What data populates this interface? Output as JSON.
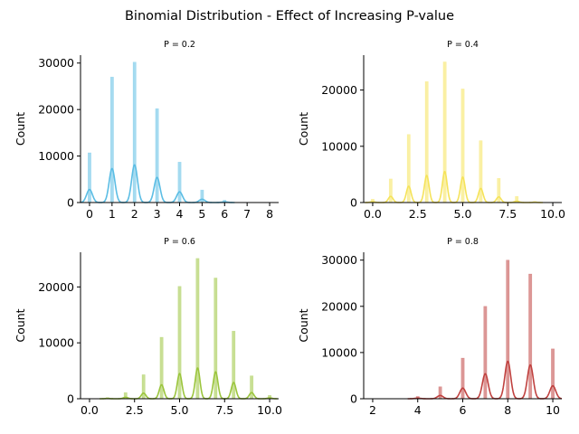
{
  "figure": {
    "title": "Binomial Distribution - Effect of Increasing P-value"
  },
  "chart_data": [
    {
      "type": "bar",
      "title": "P = 0.2",
      "xlabel": "",
      "ylabel": "Count",
      "color": "#5bbde4",
      "xlim": [
        -0.4,
        8.4
      ],
      "ylim": [
        0,
        31700
      ],
      "xticks": [
        0,
        1,
        2,
        3,
        4,
        5,
        6,
        7,
        8
      ],
      "xtick_labels": [
        "0",
        "1",
        "2",
        "3",
        "4",
        "5",
        "6",
        "7",
        "8"
      ],
      "yticks": [
        0,
        10000,
        20000,
        30000
      ],
      "ytick_labels": [
        "0",
        "10000",
        "20000",
        "30000"
      ],
      "categories": [
        0,
        1,
        2,
        3,
        4,
        5,
        6
      ],
      "values": [
        10700,
        27000,
        30200,
        20200,
        8700,
        2700,
        500
      ],
      "kde_peaks": [
        2800,
        7300,
        8100,
        5400,
        2300,
        700,
        130
      ]
    },
    {
      "type": "bar",
      "title": "P = 0.4",
      "xlabel": "",
      "ylabel": "Count",
      "color": "#f5e35a",
      "xlim": [
        -0.5,
        10.5
      ],
      "ylim": [
        0,
        26200
      ],
      "xticks": [
        0,
        2.5,
        5,
        7.5,
        10
      ],
      "xtick_labels": [
        "0.0",
        "2.5",
        "5.0",
        "7.5",
        "10.0"
      ],
      "yticks": [
        0,
        10000,
        20000
      ],
      "ytick_labels": [
        "0",
        "10000",
        "20000"
      ],
      "categories": [
        0,
        1,
        2,
        3,
        4,
        5,
        6,
        7,
        8,
        9
      ],
      "values": [
        600,
        4200,
        12100,
        21500,
        25000,
        20200,
        11000,
        4300,
        1100,
        200
      ],
      "kde_peaks": [
        150,
        1100,
        2900,
        4800,
        5500,
        4500,
        2500,
        1000,
        250,
        50
      ]
    },
    {
      "type": "bar",
      "title": "P = 0.6",
      "xlabel": "",
      "ylabel": "Count",
      "color": "#9bc53d",
      "xlim": [
        -0.5,
        10.5
      ],
      "ylim": [
        0,
        26200
      ],
      "xticks": [
        0,
        2.5,
        5,
        7.5,
        10
      ],
      "xtick_labels": [
        "0.0",
        "2.5",
        "5.0",
        "7.5",
        "10.0"
      ],
      "yticks": [
        0,
        10000,
        20000
      ],
      "ytick_labels": [
        "0",
        "10000",
        "20000"
      ],
      "categories": [
        1,
        2,
        3,
        4,
        5,
        6,
        7,
        8,
        9,
        10
      ],
      "values": [
        200,
        1100,
        4300,
        11000,
        20100,
        25100,
        21600,
        12100,
        4100,
        600
      ],
      "kde_peaks": [
        50,
        250,
        1000,
        2500,
        4500,
        5500,
        4800,
        2900,
        1100,
        150
      ]
    },
    {
      "type": "bar",
      "title": "P = 0.8",
      "xlabel": "",
      "ylabel": "Count",
      "color": "#c0413f",
      "xlim": [
        1.6,
        10.4
      ],
      "ylim": [
        0,
        31700
      ],
      "xticks": [
        2,
        4,
        6,
        8,
        10
      ],
      "xtick_labels": [
        "2",
        "4",
        "6",
        "8",
        "10"
      ],
      "yticks": [
        0,
        10000,
        20000,
        30000
      ],
      "ytick_labels": [
        "0",
        "10000",
        "20000",
        "30000"
      ],
      "categories": [
        4,
        5,
        6,
        7,
        8,
        9,
        10
      ],
      "values": [
        500,
        2600,
        8800,
        20000,
        30000,
        27000,
        10800
      ],
      "kde_peaks": [
        130,
        700,
        2300,
        5400,
        8100,
        7300,
        2800
      ]
    }
  ]
}
